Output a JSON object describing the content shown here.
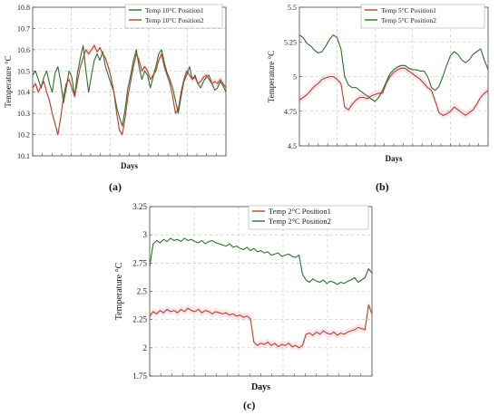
{
  "colors": {
    "red": "#b2452c",
    "green": "#2f6e2c",
    "band": "#f3d3e3",
    "grid": "#bdbdbd"
  },
  "panel_labels": {
    "a": "(a)",
    "b": "(b)",
    "c": "(c)"
  },
  "chart_data": [
    {
      "id": "a",
      "type": "line",
      "xlabel": "Days",
      "ylabel": "Temperature °C",
      "ylim": [
        10.1,
        10.8
      ],
      "yticks": [
        "10.1",
        "10.2",
        "10.3",
        "10.4",
        "10.5",
        "10.6",
        "10.7",
        "10.8"
      ],
      "ytick_values": [
        10.1,
        10.2,
        10.3,
        10.4,
        10.5,
        10.6,
        10.7,
        10.8
      ],
      "legend_position": "top-right",
      "series": [
        {
          "name": "Temp 10°C Position1",
          "color": "#2f6e2c",
          "values": [
            10.48,
            10.5,
            10.46,
            10.42,
            10.47,
            10.5,
            10.44,
            10.4,
            10.49,
            10.52,
            10.45,
            10.35,
            10.42,
            10.5,
            10.47,
            10.38,
            10.49,
            10.56,
            10.62,
            10.5,
            10.4,
            10.48,
            10.55,
            10.58,
            10.55,
            10.59,
            10.52,
            10.48,
            10.44,
            10.4,
            10.33,
            10.28,
            10.24,
            10.32,
            10.42,
            10.48,
            10.55,
            10.6,
            10.52,
            10.46,
            10.5,
            10.48,
            10.42,
            10.47,
            10.52,
            10.58,
            10.6,
            10.54,
            10.49,
            10.46,
            10.42,
            10.36,
            10.3,
            10.38,
            10.45,
            10.48,
            10.52,
            10.46,
            10.48,
            10.44,
            10.42,
            10.45,
            10.47,
            10.48,
            10.44,
            10.41,
            10.42,
            10.45,
            10.43,
            10.4
          ]
        },
        {
          "name": "Temp 10°C Position2",
          "color": "#b2452c",
          "values": [
            10.42,
            10.44,
            10.4,
            10.43,
            10.45,
            10.4,
            10.36,
            10.3,
            10.25,
            10.2,
            10.28,
            10.38,
            10.44,
            10.46,
            10.42,
            10.38,
            10.45,
            10.52,
            10.56,
            10.6,
            10.58,
            10.6,
            10.62,
            10.59,
            10.61,
            10.58,
            10.56,
            10.52,
            10.47,
            10.4,
            10.3,
            10.22,
            10.2,
            10.28,
            10.38,
            10.45,
            10.52,
            10.58,
            10.55,
            10.5,
            10.52,
            10.5,
            10.46,
            10.48,
            10.5,
            10.55,
            10.58,
            10.52,
            10.48,
            10.44,
            10.38,
            10.3,
            10.32,
            10.4,
            10.46,
            10.5,
            10.48,
            10.46,
            10.47,
            10.44,
            10.45,
            10.47,
            10.48,
            10.46,
            10.44,
            10.45,
            10.44,
            10.46,
            10.44,
            10.42
          ]
        }
      ]
    },
    {
      "id": "b",
      "type": "line",
      "xlabel": "Days",
      "ylabel": "Temperature °C",
      "ylim": [
        4.5,
        5.5
      ],
      "yticks": [
        "4.5",
        "4.75",
        "5",
        "5.25",
        "5.5"
      ],
      "ytick_values": [
        4.5,
        4.75,
        5.0,
        5.25,
        5.5
      ],
      "legend_position": "top-right",
      "series": [
        {
          "name": "Temp 5°C Position1",
          "color": "#b2452c",
          "values": [
            4.83,
            4.85,
            4.87,
            4.9,
            4.93,
            4.95,
            4.98,
            4.99,
            5.0,
            5.0,
            4.98,
            4.95,
            4.78,
            4.76,
            4.8,
            4.83,
            4.85,
            4.85,
            4.84,
            4.86,
            4.87,
            4.88,
            4.88,
            4.95,
            5.0,
            5.03,
            5.05,
            5.06,
            5.06,
            5.04,
            5.02,
            5.0,
            4.98,
            4.95,
            4.92,
            4.9,
            4.82,
            4.74,
            4.72,
            4.73,
            4.75,
            4.78,
            4.76,
            4.74,
            4.72,
            4.74,
            4.76,
            4.8,
            4.85,
            4.88,
            4.9
          ]
        },
        {
          "name": "Temp 5°C Position2",
          "color": "#2f6e2c",
          "values": [
            5.3,
            5.28,
            5.24,
            5.22,
            5.19,
            5.17,
            5.18,
            5.22,
            5.27,
            5.3,
            5.28,
            5.2,
            5.0,
            4.94,
            4.92,
            4.92,
            4.9,
            4.88,
            4.86,
            4.84,
            4.82,
            4.85,
            4.9,
            4.96,
            5.02,
            5.05,
            5.07,
            5.08,
            5.08,
            5.06,
            5.05,
            5.05,
            5.04,
            5.04,
            5.0,
            4.92,
            4.9,
            4.93,
            5.0,
            5.08,
            5.15,
            5.18,
            5.16,
            5.12,
            5.1,
            5.12,
            5.16,
            5.18,
            5.2,
            5.12,
            5.05
          ]
        }
      ]
    },
    {
      "id": "c",
      "type": "line",
      "xlabel": "Days",
      "ylabel": "Temperature °C",
      "ylim": [
        1.75,
        3.25
      ],
      "yticks": [
        "1.75",
        "2",
        "2.25",
        "2.5",
        "2.75",
        "3",
        "3.25"
      ],
      "ytick_values": [
        1.75,
        2.0,
        2.25,
        2.5,
        2.75,
        3.0,
        3.25
      ],
      "legend_position": "top-right",
      "series": [
        {
          "name": "Temp 2°C Position1",
          "color": "#b2452c",
          "values": [
            2.28,
            2.32,
            2.3,
            2.33,
            2.31,
            2.34,
            2.32,
            2.33,
            2.31,
            2.34,
            2.32,
            2.35,
            2.33,
            2.32,
            2.34,
            2.31,
            2.33,
            2.32,
            2.3,
            2.32,
            2.31,
            2.3,
            2.31,
            2.29,
            2.3,
            2.28,
            2.29,
            2.27,
            2.28,
            2.26,
            2.05,
            2.02,
            2.04,
            2.03,
            2.05,
            2.02,
            2.04,
            2.01,
            2.03,
            2.02,
            2.04,
            2.01,
            2.02,
            2.0,
            2.02,
            2.12,
            2.13,
            2.11,
            2.14,
            2.12,
            2.15,
            2.13,
            2.12,
            2.14,
            2.11,
            2.13,
            2.12,
            2.14,
            2.15,
            2.16,
            2.18,
            2.17,
            2.16,
            2.38,
            2.3
          ]
        },
        {
          "name": "Temp 2°C Position2",
          "color": "#2f6e2c",
          "values": [
            2.72,
            2.92,
            2.95,
            2.93,
            2.96,
            2.94,
            2.97,
            2.95,
            2.96,
            2.94,
            2.97,
            2.95,
            2.96,
            2.94,
            2.93,
            2.95,
            2.92,
            2.94,
            2.95,
            2.93,
            2.92,
            2.91,
            2.9,
            2.92,
            2.89,
            2.9,
            2.88,
            2.87,
            2.89,
            2.86,
            2.88,
            2.85,
            2.86,
            2.84,
            2.85,
            2.82,
            2.83,
            2.84,
            2.81,
            2.82,
            2.83,
            2.81,
            2.8,
            2.82,
            2.65,
            2.6,
            2.58,
            2.61,
            2.59,
            2.58,
            2.6,
            2.57,
            2.59,
            2.58,
            2.56,
            2.58,
            2.57,
            2.59,
            2.6,
            2.62,
            2.58,
            2.6,
            2.62,
            2.7,
            2.66
          ]
        }
      ]
    }
  ]
}
